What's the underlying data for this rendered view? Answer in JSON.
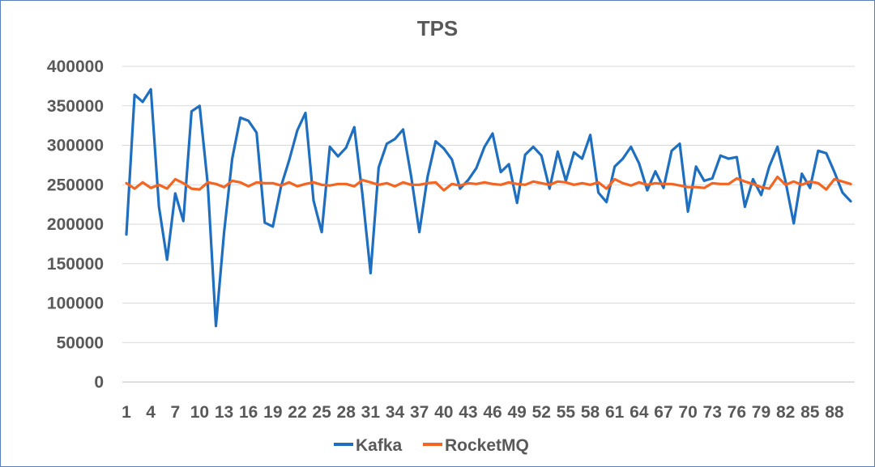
{
  "chart_data": {
    "type": "line",
    "title": "TPS",
    "xlabel": "",
    "ylabel": "",
    "ylim": [
      0,
      400000
    ],
    "yticks": [
      0,
      50000,
      100000,
      150000,
      200000,
      250000,
      300000,
      350000,
      400000
    ],
    "ytick_labels": [
      "0",
      "50000",
      "100000",
      "150000",
      "200000",
      "250000",
      "300000",
      "350000",
      "400000"
    ],
    "x": [
      1,
      2,
      3,
      4,
      5,
      6,
      7,
      8,
      9,
      10,
      11,
      12,
      13,
      14,
      15,
      16,
      17,
      18,
      19,
      20,
      21,
      22,
      23,
      24,
      25,
      26,
      27,
      28,
      29,
      30,
      31,
      32,
      33,
      34,
      35,
      36,
      37,
      38,
      39,
      40,
      41,
      42,
      43,
      44,
      45,
      46,
      47,
      48,
      49,
      50,
      51,
      52,
      53,
      54,
      55,
      56,
      57,
      58,
      59,
      60,
      61,
      62,
      63,
      64,
      65,
      66,
      67,
      68,
      69,
      70,
      71,
      72,
      73,
      74,
      75,
      76,
      77,
      78,
      79,
      80,
      81,
      82,
      83,
      84,
      85,
      86,
      87,
      88,
      89,
      90
    ],
    "xtick_labels": [
      "1",
      "4",
      "7",
      "10",
      "13",
      "16",
      "19",
      "22",
      "25",
      "28",
      "31",
      "34",
      "37",
      "40",
      "43",
      "46",
      "49",
      "52",
      "55",
      "58",
      "61",
      "64",
      "67",
      "70",
      "73",
      "76",
      "79",
      "82",
      "85",
      "88"
    ],
    "grid": true,
    "legend": "bottom",
    "series": [
      {
        "name": "Kafka",
        "color": "#1f6fc0",
        "values": [
          187000,
          364000,
          355000,
          371000,
          222000,
          155000,
          239000,
          204000,
          343000,
          350000,
          250000,
          71000,
          190000,
          283000,
          335000,
          331000,
          316000,
          202000,
          197000,
          248000,
          281000,
          319000,
          341000,
          230000,
          190000,
          298000,
          286000,
          297000,
          323000,
          238000,
          138000,
          272000,
          302000,
          308000,
          320000,
          260000,
          190000,
          260000,
          305000,
          296000,
          282000,
          245000,
          256000,
          271000,
          298000,
          315000,
          266000,
          276000,
          227000,
          288000,
          298000,
          287000,
          245000,
          292000,
          255000,
          291000,
          283000,
          313000,
          240000,
          228000,
          273000,
          283000,
          298000,
          277000,
          243000,
          267000,
          246000,
          293000,
          302000,
          216000,
          273000,
          255000,
          258000,
          287000,
          283000,
          285000,
          222000,
          257000,
          237000,
          273000,
          298000,
          254000,
          201000,
          264000,
          246000,
          293000,
          290000,
          266000,
          240000,
          229000
        ]
      },
      {
        "name": "RocketMQ",
        "color": "#f26522",
        "values": [
          252000,
          245000,
          253000,
          246000,
          250000,
          245000,
          257000,
          252000,
          245000,
          244000,
          253000,
          251000,
          247000,
          255000,
          253000,
          248000,
          253000,
          252000,
          252000,
          249000,
          253000,
          248000,
          251000,
          253000,
          250000,
          249000,
          251000,
          251000,
          248000,
          256000,
          253000,
          250000,
          252000,
          248000,
          253000,
          250000,
          250000,
          252000,
          253000,
          243000,
          251000,
          249000,
          252000,
          251000,
          253000,
          251000,
          250000,
          253000,
          251000,
          250000,
          254000,
          252000,
          250000,
          254000,
          253000,
          250000,
          252000,
          250000,
          253000,
          245000,
          257000,
          252000,
          249000,
          253000,
          250000,
          252000,
          251000,
          251000,
          249000,
          247000,
          247000,
          246000,
          252000,
          251000,
          251000,
          258000,
          254000,
          251000,
          247000,
          245000,
          260000,
          250000,
          254000,
          250000,
          254000,
          252000,
          244000,
          257000,
          254000,
          251000
        ]
      }
    ]
  }
}
